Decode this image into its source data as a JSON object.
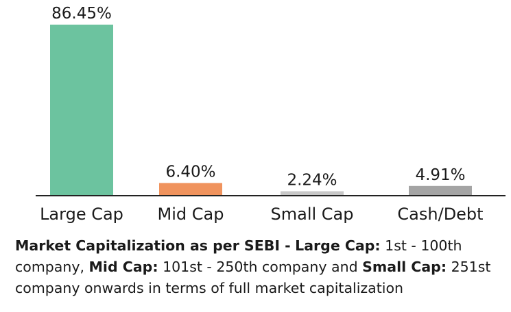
{
  "chart_data": {
    "type": "bar",
    "categories": [
      "Large Cap",
      "Mid Cap",
      "Small Cap",
      "Cash/Debt"
    ],
    "values": [
      86.45,
      6.4,
      2.24,
      4.91
    ],
    "value_labels": [
      "86.45%",
      "6.40%",
      "2.24%",
      "4.91%"
    ],
    "colors": [
      "#6cc39f",
      "#f0935d",
      "#c8c8c8",
      "#a4a4a4"
    ],
    "title": "",
    "xlabel": "",
    "ylabel": "",
    "ylim": [
      0,
      86.45
    ],
    "grid": false,
    "legend": "none"
  },
  "note": {
    "title": "Market Capitalization as per SEBI -",
    "large_label": "Large Cap:",
    "large_text": "1st - 100th company,",
    "mid_label": "Mid Cap:",
    "mid_text": "101st - 250th company and",
    "small_label": "Small Cap:",
    "small_text": "251st company onwards in terms of full market capitalization"
  }
}
